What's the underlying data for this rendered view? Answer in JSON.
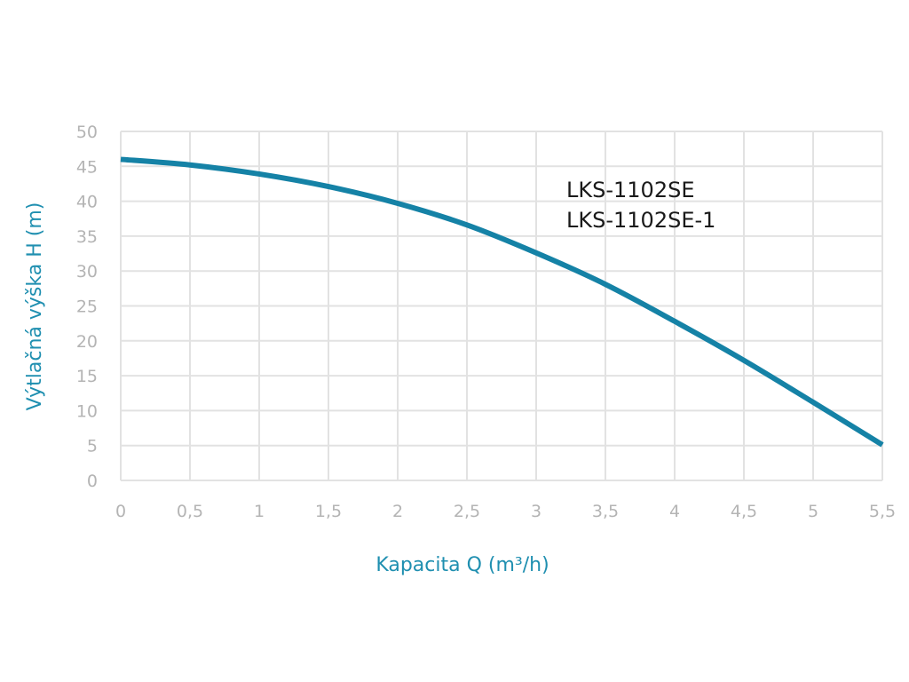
{
  "chart_data": {
    "type": "line",
    "title": "",
    "xlabel": "Kapacita Q (m³/h)",
    "ylabel": "Výtlačná výška H (m)",
    "xlim": [
      0,
      5.5
    ],
    "ylim": [
      0,
      50
    ],
    "grid": true,
    "x_tick_labels": [
      "0",
      "0,5",
      "1",
      "1,5",
      "2",
      "2,5",
      "3",
      "3,5",
      "4",
      "4,5",
      "5",
      "5,5"
    ],
    "y_tick_labels": [
      "0",
      "5",
      "10",
      "15",
      "20",
      "25",
      "30",
      "35",
      "40",
      "45",
      "50"
    ],
    "annotations": [
      "LKS-1102SE",
      "LKS-1102SE-1"
    ],
    "series": [
      {
        "name": "LKS-1102SE / LKS-1102SE-1",
        "color": "#1582a6",
        "x": [
          0,
          0.5,
          1,
          1.5,
          2,
          2.5,
          3,
          3.5,
          4,
          4.5,
          5,
          5.5
        ],
        "y": [
          46.0,
          45.2,
          43.9,
          42.1,
          39.7,
          36.6,
          32.6,
          28.1,
          22.8,
          17.2,
          11.2,
          5.1
        ]
      }
    ]
  }
}
